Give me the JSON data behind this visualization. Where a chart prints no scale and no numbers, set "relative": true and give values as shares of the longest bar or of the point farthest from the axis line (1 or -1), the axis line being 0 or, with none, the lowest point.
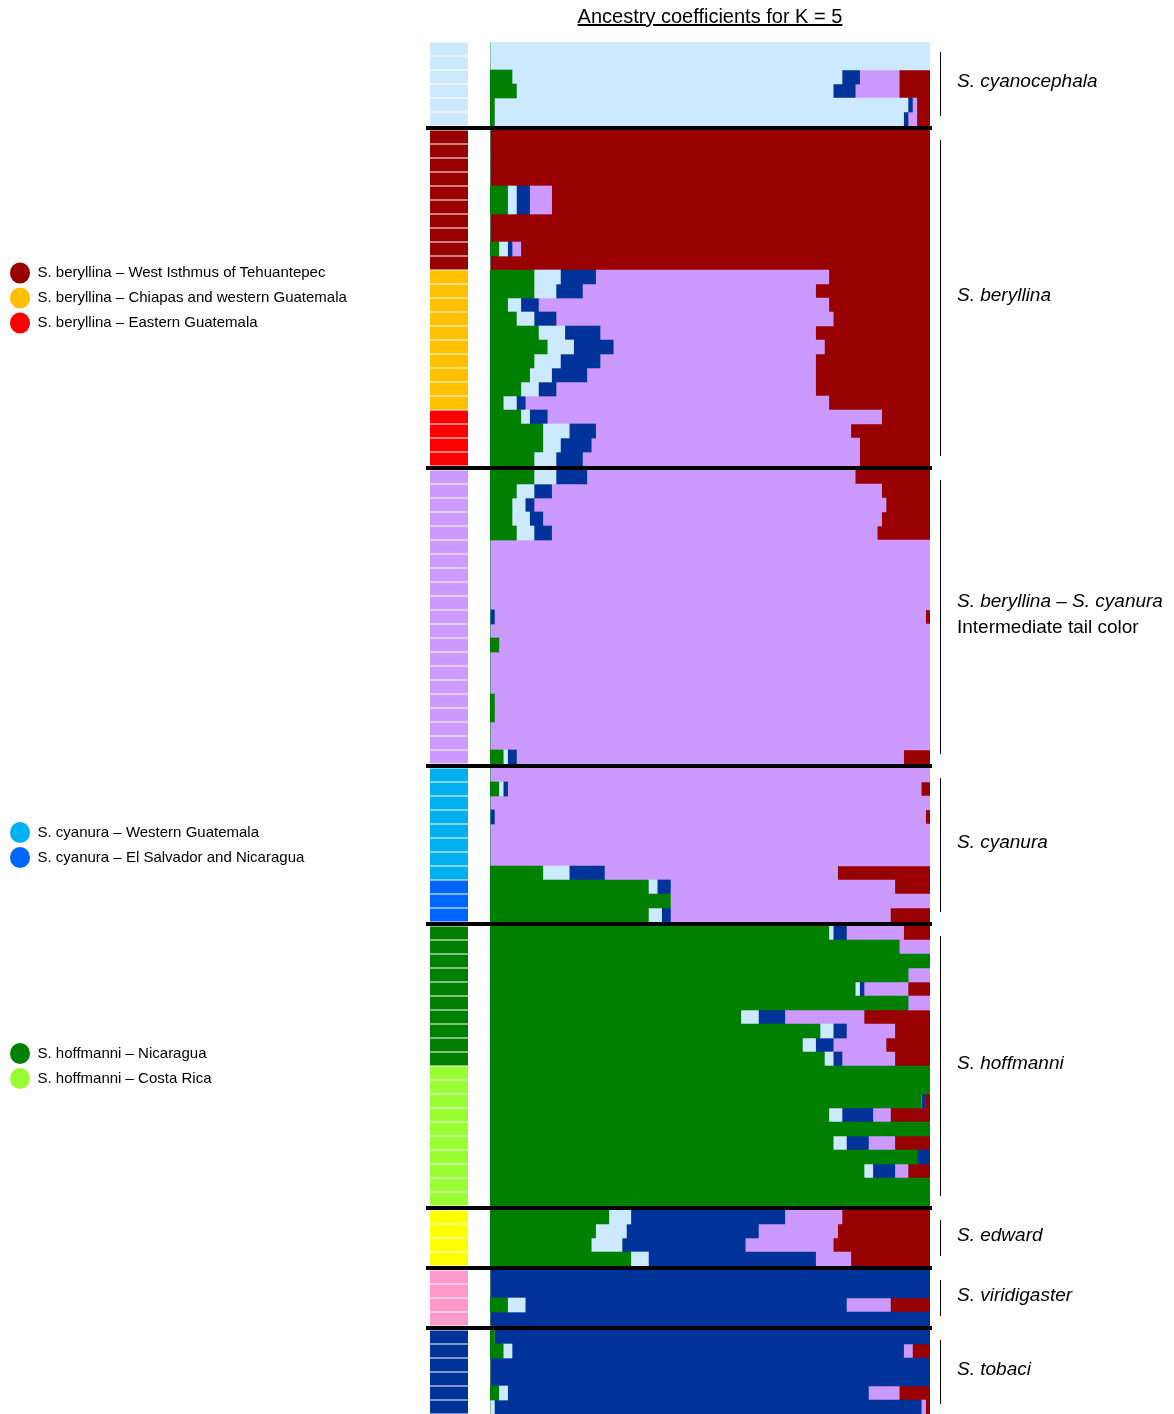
{
  "chart_data": [
    {
      "type": "bar",
      "orientation": "horizontal",
      "stacked": true,
      "relative": true,
      "tick_labels": false,
      "categories": [
        null,
        null,
        null,
        null,
        null,
        null
      ],
      "series": [
        {
          "color": "#cce9ff",
          "values": [
            1,
            1,
            1,
            1,
            1,
            1
          ]
        }
      ]
    },
    {
      "type": "bar",
      "orientation": "horizontal",
      "stacked": true,
      "relative": true,
      "tick_labels": false,
      "title": "Ancestry coefficients for K = 5",
      "annotations": [
        "S. cyanocephala"
      ],
      "categories": [
        null,
        null,
        null,
        null,
        null,
        null
      ],
      "series": [
        {
          "color": "#008000",
          "values": [
            0,
            0,
            0.05,
            0.06,
            0.01,
            0.01
          ]
        },
        {
          "color": "#cce9ff",
          "values": [
            1,
            1,
            0.75,
            0.72,
            0.94,
            0.93
          ]
        },
        {
          "color": "#003399",
          "values": [
            0,
            0,
            0.04,
            0.05,
            0.01,
            0.01
          ]
        },
        {
          "color": "#cc99ff",
          "values": [
            0,
            0,
            0.09,
            0.1,
            0.01,
            0.02
          ]
        },
        {
          "color": "#990000",
          "values": [
            0,
            0,
            0.07,
            0.07,
            0.03,
            0.03
          ]
        }
      ]
    },
    {
      "type": "bar",
      "orientation": "horizontal",
      "stacked": true,
      "relative": true,
      "tick_labels": false,
      "legend": "left",
      "categories": [
        null,
        null,
        null,
        null,
        null,
        null,
        null,
        null,
        null,
        null,
        null,
        null,
        null,
        null,
        null,
        null,
        null,
        null,
        null,
        null,
        null,
        null,
        null,
        null
      ],
      "series": [
        {
          "name": "S. beryllina – West Isthmus of Tehuantepec",
          "color": "#990000",
          "values": [
            1,
            1,
            1,
            1,
            1,
            1,
            1,
            1,
            1,
            1,
            null,
            null,
            null,
            null,
            null,
            null,
            null,
            null,
            null,
            null,
            null,
            null,
            null,
            null
          ]
        },
        {
          "name": "S. beryllina – Chiapas and western Guatemala",
          "color": "#ffc000",
          "values": [
            null,
            null,
            null,
            null,
            null,
            null,
            null,
            null,
            null,
            null,
            1,
            1,
            1,
            1,
            1,
            1,
            1,
            1,
            1,
            1,
            null,
            null,
            null,
            null
          ]
        },
        {
          "name": "S. beryllina – Eastern Guatemala",
          "color": "#ff0000",
          "values": [
            null,
            null,
            null,
            null,
            null,
            null,
            null,
            null,
            null,
            null,
            null,
            null,
            null,
            null,
            null,
            null,
            null,
            null,
            null,
            null,
            1,
            1,
            1,
            1
          ]
        }
      ]
    },
    {
      "type": "bar",
      "orientation": "horizontal",
      "stacked": true,
      "relative": true,
      "tick_labels": false,
      "annotations": [
        "S. beryllina"
      ],
      "categories": [
        null,
        null,
        null,
        null,
        null,
        null,
        null,
        null,
        null,
        null,
        null,
        null,
        null,
        null,
        null,
        null,
        null,
        null,
        null,
        null,
        null,
        null,
        null,
        null
      ],
      "series": [
        {
          "color": "#008000",
          "values": [
            0,
            0,
            0,
            0,
            0.04,
            0.04,
            0,
            0,
            0.02,
            0,
            0.1,
            0.1,
            0.04,
            0.06,
            0.11,
            0.13,
            0.1,
            0.09,
            0.07,
            0.03,
            0.07,
            0.12,
            0.12,
            0.1
          ]
        },
        {
          "color": "#cce9ff",
          "values": [
            0,
            0,
            0,
            0,
            0.02,
            0.02,
            0,
            0,
            0.02,
            0,
            0.06,
            0.05,
            0.03,
            0.04,
            0.06,
            0.06,
            0.06,
            0.05,
            0.04,
            0.03,
            0.02,
            0.06,
            0.04,
            0.05
          ]
        },
        {
          "color": "#003399",
          "values": [
            0,
            0,
            0,
            0,
            0.03,
            0.03,
            0,
            0,
            0.01,
            0,
            0.08,
            0.06,
            0.04,
            0.05,
            0.08,
            0.09,
            0.09,
            0.08,
            0.04,
            0.02,
            0.04,
            0.06,
            0.07,
            0.06
          ]
        },
        {
          "color": "#cc99ff",
          "values": [
            0,
            0,
            0,
            0,
            0.05,
            0.05,
            0,
            0,
            0.02,
            0,
            0.53,
            0.53,
            0.66,
            0.63,
            0.49,
            0.48,
            0.49,
            0.52,
            0.59,
            0.69,
            0.76,
            0.58,
            0.61,
            0.63
          ]
        },
        {
          "color": "#990000",
          "values": [
            1,
            1,
            1,
            1,
            0.86,
            0.86,
            1,
            1,
            0.93,
            1,
            0.23,
            0.26,
            0.23,
            0.22,
            0.26,
            0.24,
            0.26,
            0.26,
            0.26,
            0.23,
            0.11,
            0.18,
            0.16,
            0.16
          ]
        }
      ]
    },
    {
      "type": "bar",
      "orientation": "horizontal",
      "stacked": true,
      "relative": true,
      "tick_labels": false,
      "categories": [
        null,
        null,
        null,
        null,
        null,
        null,
        null,
        null,
        null,
        null,
        null,
        null,
        null,
        null,
        null,
        null,
        null,
        null,
        null,
        null,
        null
      ],
      "series": [
        {
          "color": "#cc99ff",
          "values": [
            1,
            1,
            1,
            1,
            1,
            1,
            1,
            1,
            1,
            1,
            1,
            1,
            1,
            1,
            1,
            1,
            1,
            1,
            1,
            1,
            1
          ]
        }
      ]
    },
    {
      "type": "bar",
      "orientation": "horizontal",
      "stacked": true,
      "relative": true,
      "tick_labels": false,
      "annotations": [
        "S. beryllina – S. cyanura",
        "Intermediate tail color"
      ],
      "categories": [
        null,
        null,
        null,
        null,
        null,
        null,
        null,
        null,
        null,
        null,
        null,
        null,
        null,
        null,
        null,
        null,
        null,
        null,
        null,
        null,
        null
      ],
      "series": [
        {
          "color": "#008000",
          "values": [
            0.1,
            0.06,
            0.05,
            0.05,
            0.06,
            0,
            0,
            0,
            0,
            0,
            0,
            0,
            0.02,
            0,
            0,
            0,
            0.01,
            0.01,
            0,
            0,
            0.03
          ]
        },
        {
          "color": "#cce9ff",
          "values": [
            0.05,
            0.04,
            0.03,
            0.04,
            0.04,
            0,
            0,
            0,
            0,
            0,
            0,
            0,
            0,
            0,
            0,
            0,
            0,
            0,
            0,
            0,
            0.01
          ]
        },
        {
          "color": "#003399",
          "values": [
            0.07,
            0.04,
            0.02,
            0.03,
            0.04,
            0,
            0,
            0,
            0,
            0,
            0.01,
            0,
            0,
            0,
            0,
            0,
            0,
            0,
            0,
            0,
            0.02
          ]
        },
        {
          "color": "#cc99ff",
          "values": [
            0.61,
            0.75,
            0.8,
            0.77,
            0.74,
            1,
            1,
            1,
            1,
            1,
            0.98,
            1,
            0.98,
            1,
            1,
            1,
            0.99,
            0.99,
            1,
            1,
            0.88
          ]
        },
        {
          "color": "#990000",
          "values": [
            0.17,
            0.11,
            0.1,
            0.11,
            0.12,
            0,
            0,
            0,
            0,
            0,
            0.01,
            0,
            0,
            0,
            0,
            0,
            0,
            0,
            0,
            0,
            0.06
          ]
        }
      ]
    },
    {
      "type": "bar",
      "orientation": "horizontal",
      "stacked": true,
      "relative": true,
      "tick_labels": false,
      "legend": "left",
      "categories": [
        null,
        null,
        null,
        null,
        null,
        null,
        null,
        null,
        null,
        null,
        null
      ],
      "series": [
        {
          "name": "S. cyanura – Western Guatemala",
          "color": "#00b0f0",
          "values": [
            1,
            1,
            1,
            1,
            1,
            1,
            1,
            1,
            null,
            null,
            null
          ]
        },
        {
          "name": "S. cyanura – El Salvador and Nicaragua",
          "color": "#0066ff",
          "values": [
            null,
            null,
            null,
            null,
            null,
            null,
            null,
            null,
            1,
            1,
            1
          ]
        }
      ]
    },
    {
      "type": "bar",
      "orientation": "horizontal",
      "stacked": true,
      "relative": true,
      "tick_labels": false,
      "annotations": [
        "S. cyanura"
      ],
      "categories": [
        null,
        null,
        null,
        null,
        null,
        null,
        null,
        null,
        null,
        null,
        null
      ],
      "series": [
        {
          "color": "#008000",
          "values": [
            0,
            0.02,
            0,
            0,
            0,
            0,
            0,
            0.12,
            0.36,
            0.41,
            0.36
          ]
        },
        {
          "color": "#cce9ff",
          "values": [
            0,
            0.01,
            0,
            0,
            0,
            0,
            0,
            0.06,
            0.02,
            0,
            0.03
          ]
        },
        {
          "color": "#003399",
          "values": [
            0,
            0.01,
            0,
            0.01,
            0,
            0,
            0,
            0.08,
            0.03,
            0,
            0.02
          ]
        },
        {
          "color": "#cc99ff",
          "values": [
            1,
            0.94,
            1,
            0.98,
            1,
            1,
            1,
            0.53,
            0.51,
            0.59,
            0.5
          ]
        },
        {
          "color": "#990000",
          "values": [
            0,
            0.02,
            0,
            0.01,
            0,
            0,
            0,
            0.21,
            0.08,
            0,
            0.09
          ]
        }
      ]
    },
    {
      "type": "bar",
      "orientation": "horizontal",
      "stacked": true,
      "relative": true,
      "tick_labels": false,
      "legend": "left",
      "categories": [
        null,
        null,
        null,
        null,
        null,
        null,
        null,
        null,
        null,
        null,
        null,
        null,
        null,
        null,
        null,
        null,
        null,
        null,
        null,
        null
      ],
      "series": [
        {
          "name": "S. hoffmanni – Nicaragua",
          "color": "#008000",
          "values": [
            1,
            1,
            1,
            1,
            1,
            1,
            1,
            1,
            1,
            1,
            null,
            null,
            null,
            null,
            null,
            null,
            null,
            null,
            null,
            null
          ]
        },
        {
          "name": "S. hoffmanni – Costa Rica",
          "color": "#99ff33",
          "values": [
            null,
            null,
            null,
            null,
            null,
            null,
            null,
            null,
            null,
            null,
            1,
            1,
            1,
            1,
            1,
            1,
            1,
            1,
            1,
            1
          ]
        }
      ]
    },
    {
      "type": "bar",
      "orientation": "horizontal",
      "stacked": true,
      "relative": true,
      "tick_labels": false,
      "annotations": [
        "S. hoffmanni"
      ],
      "categories": [
        null,
        null,
        null,
        null,
        null,
        null,
        null,
        null,
        null,
        null,
        null,
        null,
        null,
        null,
        null,
        null,
        null,
        null,
        null,
        null
      ],
      "series": [
        {
          "color": "#008000",
          "values": [
            0.77,
            0.93,
            1,
            0.95,
            0.83,
            0.95,
            0.57,
            0.75,
            0.71,
            0.76,
            1,
            1,
            0.98,
            0.77,
            1,
            0.78,
            0.97,
            0.85,
            1,
            1
          ]
        },
        {
          "color": "#cce9ff",
          "values": [
            0.01,
            0,
            0,
            0,
            0.01,
            0,
            0.04,
            0.03,
            0.03,
            0.02,
            0,
            0,
            0,
            0.03,
            0,
            0.03,
            0,
            0.02,
            0,
            0
          ]
        },
        {
          "color": "#003399",
          "values": [
            0.03,
            0,
            0,
            0,
            0.01,
            0,
            0.06,
            0.03,
            0.04,
            0.02,
            0,
            0,
            0.01,
            0.07,
            0,
            0.05,
            0.03,
            0.05,
            0,
            0
          ]
        },
        {
          "color": "#cc99ff",
          "values": [
            0.13,
            0.07,
            0,
            0.05,
            0.1,
            0.05,
            0.18,
            0.11,
            0.12,
            0.12,
            0,
            0,
            0,
            0.04,
            0,
            0.06,
            0,
            0.03,
            0,
            0
          ]
        },
        {
          "color": "#990000",
          "values": [
            0.06,
            0,
            0,
            0,
            0.05,
            0,
            0.15,
            0.08,
            0.1,
            0.08,
            0,
            0,
            0.01,
            0.09,
            0,
            0.08,
            0,
            0.05,
            0,
            0
          ]
        }
      ]
    },
    {
      "type": "bar",
      "orientation": "horizontal",
      "stacked": true,
      "relative": true,
      "tick_labels": false,
      "categories": [
        null,
        null,
        null,
        null
      ],
      "series": [
        {
          "color": "#ffff00",
          "values": [
            1,
            1,
            1,
            1
          ]
        }
      ]
    },
    {
      "type": "bar",
      "orientation": "horizontal",
      "stacked": true,
      "relative": true,
      "tick_labels": false,
      "annotations": [
        "S. edward"
      ],
      "categories": [
        null,
        null,
        null,
        null
      ],
      "series": [
        {
          "color": "#008000",
          "values": [
            0.27,
            0.24,
            0.23,
            0.32
          ]
        },
        {
          "color": "#cce9ff",
          "values": [
            0.05,
            0.07,
            0.07,
            0.04
          ]
        },
        {
          "color": "#003399",
          "values": [
            0.35,
            0.3,
            0.28,
            0.38
          ]
        },
        {
          "color": "#cc99ff",
          "values": [
            0.13,
            0.18,
            0.2,
            0.08
          ]
        },
        {
          "color": "#990000",
          "values": [
            0.2,
            0.21,
            0.22,
            0.18
          ]
        }
      ]
    },
    {
      "type": "bar",
      "orientation": "horizontal",
      "stacked": true,
      "relative": true,
      "tick_labels": false,
      "categories": [
        null,
        null,
        null,
        null
      ],
      "series": [
        {
          "color": "#ff99cc",
          "values": [
            1,
            1,
            1,
            1
          ]
        }
      ]
    },
    {
      "type": "bar",
      "orientation": "horizontal",
      "stacked": true,
      "relative": true,
      "tick_labels": false,
      "annotations": [
        "S. viridigaster"
      ],
      "categories": [
        null,
        null,
        null,
        null
      ],
      "series": [
        {
          "color": "#008000",
          "values": [
            0,
            0,
            0.04,
            0
          ]
        },
        {
          "color": "#cce9ff",
          "values": [
            0,
            0,
            0.04,
            0
          ]
        },
        {
          "color": "#003399",
          "values": [
            1,
            1,
            0.73,
            1
          ]
        },
        {
          "color": "#cc99ff",
          "values": [
            0,
            0,
            0.1,
            0
          ]
        },
        {
          "color": "#990000",
          "values": [
            0,
            0,
            0.09,
            0
          ]
        }
      ]
    },
    {
      "type": "bar",
      "orientation": "horizontal",
      "stacked": true,
      "relative": true,
      "tick_labels": false,
      "categories": [
        null,
        null,
        null,
        null,
        null,
        null
      ],
      "series": [
        {
          "color": "#003399",
          "values": [
            1,
            1,
            1,
            1,
            1,
            1
          ]
        }
      ]
    },
    {
      "type": "bar",
      "orientation": "horizontal",
      "stacked": true,
      "relative": true,
      "tick_labels": false,
      "annotations": [
        "S. tobaci"
      ],
      "categories": [
        null,
        null,
        null,
        null,
        null,
        null
      ],
      "series": [
        {
          "color": "#008000",
          "values": [
            0.01,
            0.03,
            0,
            0,
            0.02,
            0
          ]
        },
        {
          "color": "#cce9ff",
          "values": [
            0,
            0.02,
            0,
            0,
            0.02,
            0.01
          ]
        },
        {
          "color": "#003399",
          "values": [
            0.99,
            0.89,
            1,
            1,
            0.82,
            0.97
          ]
        },
        {
          "color": "#cc99ff",
          "values": [
            0,
            0.02,
            0,
            0,
            0.07,
            0.01
          ]
        },
        {
          "color": "#990000",
          "values": [
            0,
            0.04,
            0,
            0,
            0.07,
            0.01
          ]
        }
      ]
    }
  ]
}
